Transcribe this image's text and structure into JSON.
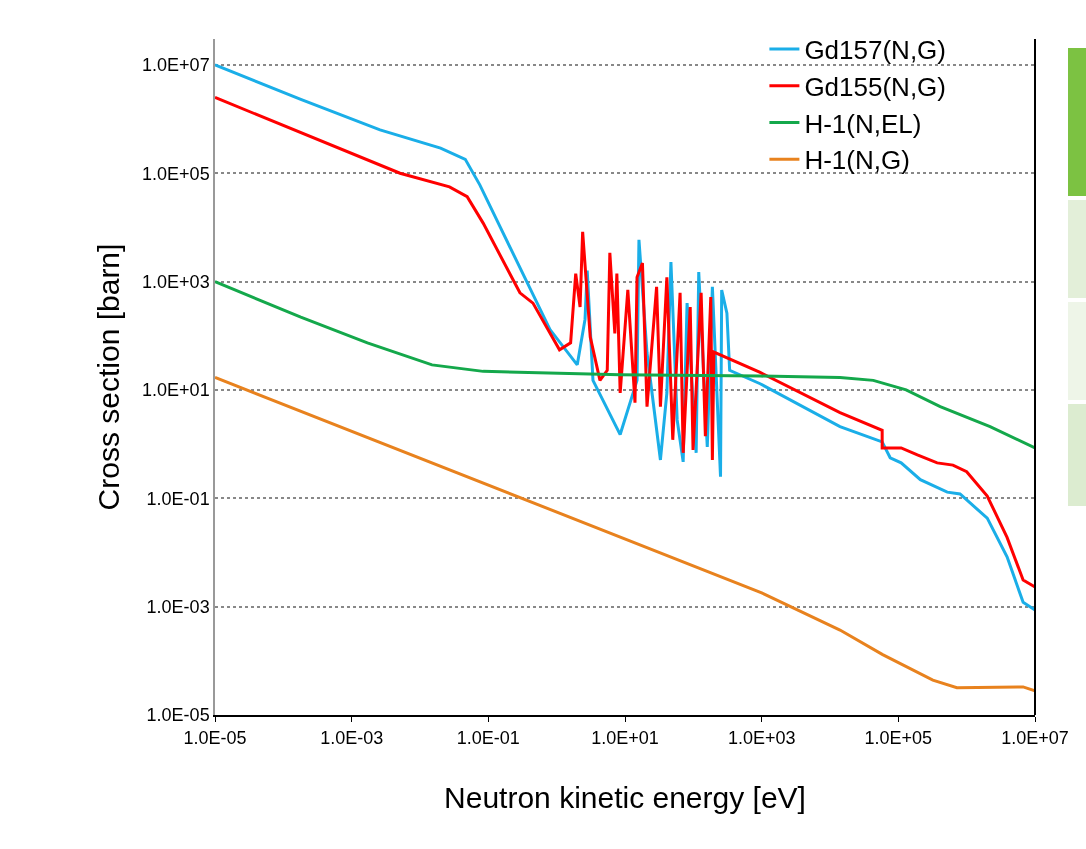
{
  "chart_data": {
    "type": "line",
    "xlabel": "Neutron kinetic energy [eV]",
    "ylabel": "Cross section [barn]",
    "log": "xy",
    "grid": "y",
    "legend": "top right",
    "marker": "none",
    "line_style": "solid",
    "xlim": [
      1e-05,
      10000000.0
    ],
    "ylim": [
      1e-05,
      30000000.0
    ],
    "xticks": [
      {
        "value": 1e-05,
        "label": "1.0E-05"
      },
      {
        "value": 0.001,
        "label": "1.0E-03"
      },
      {
        "value": 0.1,
        "label": "1.0E-01"
      },
      {
        "value": 10.0,
        "label": "1.0E+01"
      },
      {
        "value": 1000.0,
        "label": "1.0E+03"
      },
      {
        "value": 100000.0,
        "label": "1.0E+05"
      },
      {
        "value": 10000000.0,
        "label": "1.0E+07"
      }
    ],
    "yticks": [
      {
        "value": 1e-05,
        "label": "1.0E-05"
      },
      {
        "value": 0.001,
        "label": "1.0E-03"
      },
      {
        "value": 0.1,
        "label": "1.0E-01"
      },
      {
        "value": 10.0,
        "label": "1.0E+01"
      },
      {
        "value": 1000.0,
        "label": "1.0E+03"
      },
      {
        "value": 100000.0,
        "label": "1.0E+05"
      },
      {
        "value": 10000000.0,
        "label": "1.0E+07"
      }
    ],
    "series": [
      {
        "name": "Gd157(N,G)",
        "color": "#1aaee8",
        "x": [
          1e-05,
          0.00018,
          0.0026,
          0.02,
          0.046,
          0.075,
          0.15,
          0.8,
          2.0,
          2.6,
          2.8,
          3.4,
          8.5,
          15,
          16,
          21,
          33,
          41,
          47,
          58,
          71,
          81,
          110,
          120,
          160,
          190,
          250,
          260,
          310,
          340,
          950,
          14000.0,
          58000.0,
          76000.0,
          110000.0,
          210000.0,
          520000.0,
          800000.0,
          2000000.0,
          3900000.0,
          6700000.0,
          10000000.0
        ],
        "values": [
          10000000.0,
          2300000.0,
          630000.0,
          290000.0,
          180000.0,
          61000.0,
          10000.0,
          130,
          29,
          200,
          1600,
          15,
          1.5,
          15,
          5900,
          48,
          0.51,
          8.8,
          2300,
          2.8,
          0.47,
          400,
          0.69,
          1500,
          0.89,
          800,
          0.25,
          700,
          260,
          23,
          13,
          2.1,
          1.1,
          0.56,
          0.45,
          0.22,
          0.13,
          0.12,
          0.043,
          0.0083,
          0.0012,
          0.00087
        ]
      },
      {
        "name": "Gd155(N,G)",
        "color": "#ff0000",
        "x": [
          1e-05,
          0.0051,
          0.027,
          0.049,
          0.084,
          0.29,
          0.45,
          1.1,
          1.6,
          1.9,
          2.2,
          2.4,
          3.1,
          4.3,
          5.5,
          6.0,
          7.1,
          7.6,
          8.5,
          11,
          14,
          15,
          18,
          21,
          29,
          33,
          41,
          50,
          64,
          71,
          90,
          99,
          130,
          150,
          180,
          190,
          200,
          950,
          14000.0,
          58000.0,
          58000.0,
          110000.0,
          190000.0,
          370000.0,
          630000.0,
          1000000.0,
          2000000.0,
          3900000.0,
          6700000.0,
          10000000.0
        ],
        "values": [
          2500000.0,
          100000.0,
          56000.0,
          37000.0,
          12000.0,
          620,
          400,
          55,
          74,
          1400,
          340,
          8300,
          95,
          15,
          23,
          3400,
          110,
          1400,
          8.8,
          700,
          5.8,
          1200,
          2200,
          4.9,
          800,
          4.9,
          1200,
          1.2,
          620,
          0.69,
          340,
          0.78,
          620,
          1.4,
          520,
          0.51,
          50,
          21,
          3.8,
          1.8,
          0.85,
          0.85,
          0.63,
          0.45,
          0.41,
          0.31,
          0.11,
          0.019,
          0.0031,
          0.0023
        ]
      },
      {
        "name": "H-1(N,EL)",
        "color": "#14a84b",
        "x": [
          1e-05,
          0.00018,
          0.0017,
          0.015,
          0.084,
          8.5,
          950,
          14000.0,
          43000.0,
          130000.0,
          410000.0,
          2200000.0,
          10000000.0
        ],
        "values": [
          1000,
          220,
          74,
          29,
          22,
          19,
          18,
          17,
          15,
          10,
          4.9,
          2.1,
          0.85
        ]
      },
      {
        "name": "H-1(N,G)",
        "color": "#e8821e",
        "x": [
          1e-05,
          1000.0,
          14000.0,
          59000.0,
          320000.0,
          720000.0,
          6700000.0,
          10000000.0
        ],
        "values": [
          17,
          0.0018,
          0.00037,
          0.00013,
          4.4e-05,
          3.2e-05,
          3.3e-05,
          2.8e-05
        ]
      }
    ]
  }
}
